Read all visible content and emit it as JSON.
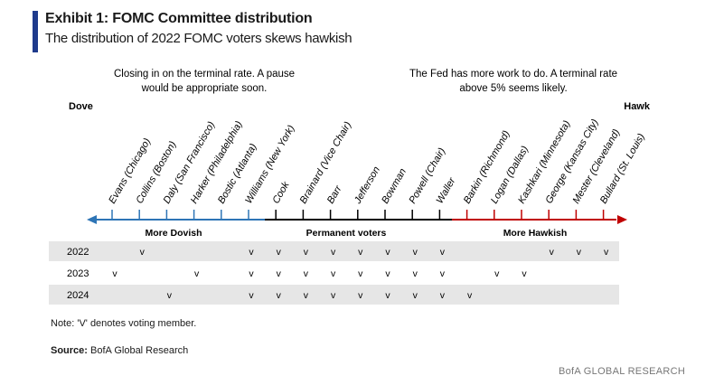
{
  "header": {
    "title": "Exhibit 1: FOMC Committee distribution",
    "subtitle": "The distribution of 2022 FOMC voters skews hawkish",
    "accent_color": "#1f3b8c"
  },
  "annotations": {
    "dovish_line1": "Closing in on the terminal rate. A pause",
    "dovish_line2": "would be appropriate soon.",
    "hawkish_line1": "The Fed has more work to do. A terminal rate",
    "hawkish_line2": "above 5% seems likely."
  },
  "axis": {
    "left_end": "Dove",
    "right_end": "Hawk",
    "segments": {
      "dovish": {
        "label": "More Dovish",
        "color": "#2e75b6"
      },
      "permanent": {
        "label": "Permanent voters",
        "color": "#000000"
      },
      "hawkish": {
        "label": "More Hawkish",
        "color": "#c00000"
      }
    }
  },
  "members": [
    {
      "name": "Evans (Chicago)",
      "group": "dovish"
    },
    {
      "name": "Collins (Boston)",
      "group": "dovish"
    },
    {
      "name": "Daly (San Francisco)",
      "group": "dovish"
    },
    {
      "name": "Harker (Philadelphia)",
      "group": "dovish"
    },
    {
      "name": "Bostic (Atlanta)",
      "group": "dovish"
    },
    {
      "name": "Williams (New York)",
      "group": "dovish"
    },
    {
      "name": "Cook",
      "group": "permanent"
    },
    {
      "name": "Brainard (Vice Chair)",
      "group": "permanent"
    },
    {
      "name": "Barr",
      "group": "permanent"
    },
    {
      "name": "Jefferson",
      "group": "permanent"
    },
    {
      "name": "Bowman",
      "group": "permanent"
    },
    {
      "name": "Powell (Chair)",
      "group": "permanent"
    },
    {
      "name": "Waller",
      "group": "permanent"
    },
    {
      "name": "Barkin (Richmond)",
      "group": "hawkish"
    },
    {
      "name": "Logan (Dallas)",
      "group": "hawkish"
    },
    {
      "name": "Kashkari (Minnesota)",
      "group": "hawkish"
    },
    {
      "name": "George (Kansas City)",
      "group": "hawkish"
    },
    {
      "name": "Mester (Cleveland)",
      "group": "hawkish"
    },
    {
      "name": "Bullard (St. Louis)",
      "group": "hawkish"
    }
  ],
  "voting_mark": "v",
  "voting": [
    {
      "year": "2022",
      "marks": [
        0,
        1,
        0,
        0,
        0,
        1,
        1,
        1,
        1,
        1,
        1,
        1,
        1,
        0,
        0,
        0,
        1,
        1,
        1
      ]
    },
    {
      "year": "2023",
      "marks": [
        1,
        0,
        0,
        1,
        0,
        1,
        1,
        1,
        1,
        1,
        1,
        1,
        1,
        0,
        1,
        1,
        0,
        0,
        0
      ]
    },
    {
      "year": "2024",
      "marks": [
        0,
        0,
        1,
        0,
        0,
        1,
        1,
        1,
        1,
        1,
        1,
        1,
        1,
        1,
        0,
        0,
        0,
        0,
        0
      ]
    }
  ],
  "footer": {
    "note": "Note: 'V' denotes voting member.",
    "source_label": "Source:",
    "source_text": "BofA Global Research",
    "brand": "BofA GLOBAL RESEARCH"
  }
}
